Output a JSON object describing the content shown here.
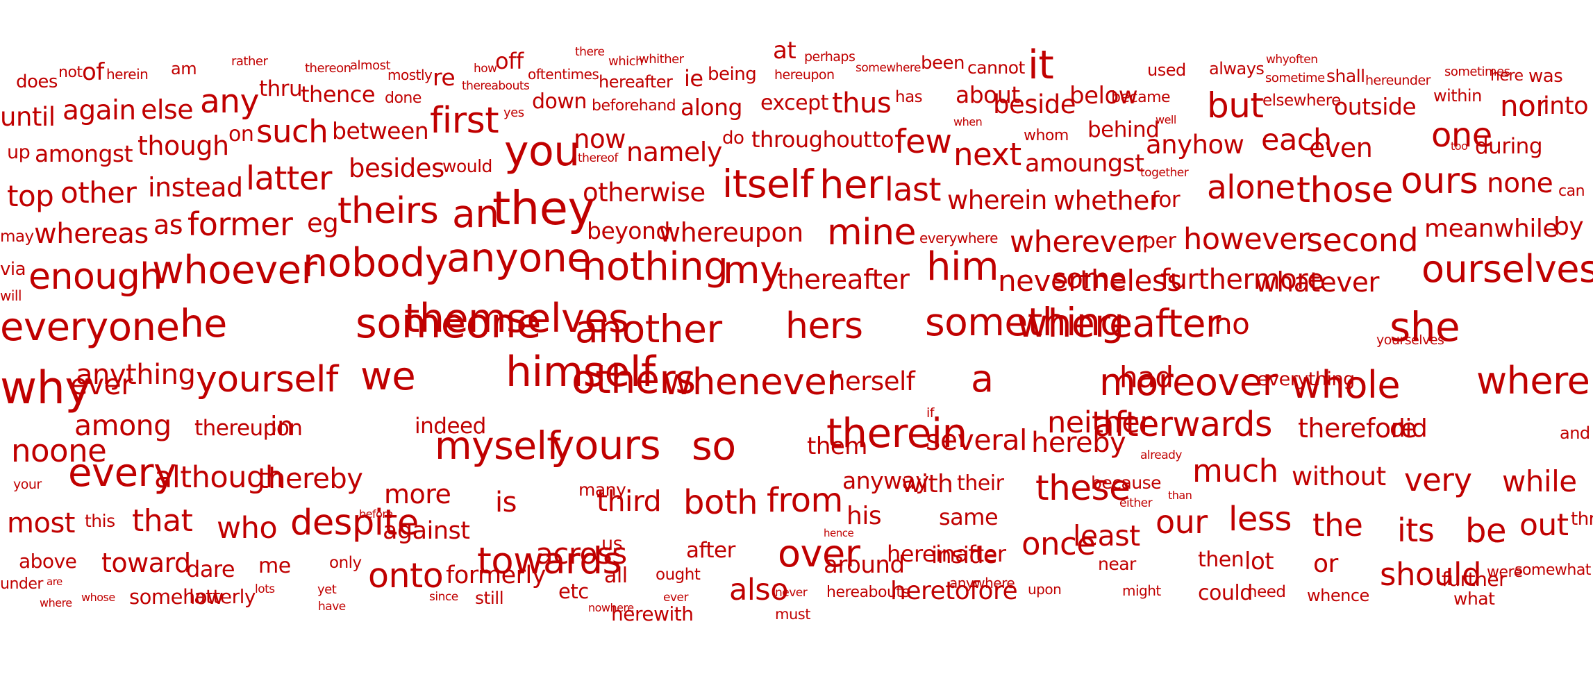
{
  "word_color": "#c00000",
  "background_color": "#ffffff",
  "words": [
    "does",
    "not",
    "of",
    "herein",
    "am",
    "rather",
    "thereon",
    "almost",
    "mostly",
    "re",
    "how",
    "off",
    "thereabouts",
    "oftentimes",
    "there",
    "which",
    "whither",
    "hereafter",
    "ie",
    "being",
    "at",
    "perhaps",
    "hereupon",
    "somewhere",
    "been",
    "cannot",
    "it",
    "used",
    "always",
    "why",
    "often",
    "sometime",
    "shall",
    "hereunder",
    "sometimes",
    "here",
    "was",
    "until",
    "again",
    "else",
    "any",
    "thru",
    "thence",
    "done",
    "yes",
    "down",
    "beforehand",
    "along",
    "except",
    "thus",
    "has",
    "about",
    "beside",
    "below",
    "became",
    "but",
    "elsewhere",
    "outside",
    "within",
    "nor",
    "into",
    "when",
    "well",
    "up",
    "amongst",
    "though",
    "on",
    "such",
    "between",
    "first",
    "you",
    "now",
    "thereof",
    "namely",
    "do",
    "throughout",
    "to",
    "few",
    "next",
    "whom",
    "behind",
    "anyhow",
    "each",
    "even",
    "one",
    "too",
    "during",
    "would",
    "amoungst",
    "together",
    "top",
    "other",
    "instead",
    "latter",
    "besides",
    "otherwise",
    "itself",
    "her",
    "last",
    "wherein",
    "whether",
    "for",
    "alone",
    "those",
    "ours",
    "none",
    "can",
    "may",
    "whereas",
    "as",
    "former",
    "eg",
    "theirs",
    "an",
    "they",
    "beyond",
    "whereupon",
    "mine",
    "everywhere",
    "wherever",
    "per",
    "however",
    "second",
    "meanwhile",
    "by",
    "via",
    "will",
    "enough",
    "whoever",
    "nobody",
    "anyone",
    "nothing",
    "my",
    "thereafter",
    "him",
    "nevertheless",
    "some",
    "furthermore",
    "whatever",
    "ourselves",
    "everyone",
    "he",
    "someone",
    "themselves",
    "another",
    "hers",
    "something",
    "whereafter",
    "no",
    "yourselves",
    "she",
    "why",
    "ever",
    "anything",
    "yourself",
    "we",
    "himself",
    "others",
    "whenever",
    "herself",
    "a",
    "moreover",
    "had",
    "everything",
    "whole",
    "whereby",
    "among",
    "thereupon",
    "in",
    "indeed",
    "if",
    "neither",
    "afterwards",
    "therefore",
    "did",
    "and",
    "noone",
    "myself",
    "yours",
    "so",
    "them",
    "therein",
    "several",
    "hereby",
    "already",
    "your",
    "every",
    "although",
    "thereby",
    "more",
    "is",
    "many",
    "third",
    "both",
    "from",
    "anyway",
    "with",
    "their",
    "these",
    "because",
    "either",
    "much",
    "without",
    "very",
    "while",
    "than",
    "most",
    "this",
    "that",
    "who",
    "despite",
    "before",
    "against",
    "his",
    "same",
    "once",
    "least",
    "our",
    "less",
    "the",
    "its",
    "be",
    "out",
    "through",
    "hence",
    "above",
    "toward",
    "dare",
    "me",
    "only",
    "towards",
    "across",
    "us",
    "after",
    "over",
    "around",
    "hereinafter",
    "inside",
    "near",
    "then",
    "lot",
    "or",
    "should",
    "further",
    "were",
    "somewhat",
    "under",
    "are",
    "somehow",
    "latterly",
    "lots",
    "yet",
    "onto",
    "formerly",
    "all",
    "ought",
    "also",
    "hereabouts",
    "heretofore",
    "anywhere",
    "upon",
    "might",
    "could",
    "need",
    "whence",
    "what",
    "where",
    "whose",
    "have",
    "since",
    "still",
    "etc",
    "nowhere",
    "herewith",
    "ever",
    "never",
    "must"
  ]
}
